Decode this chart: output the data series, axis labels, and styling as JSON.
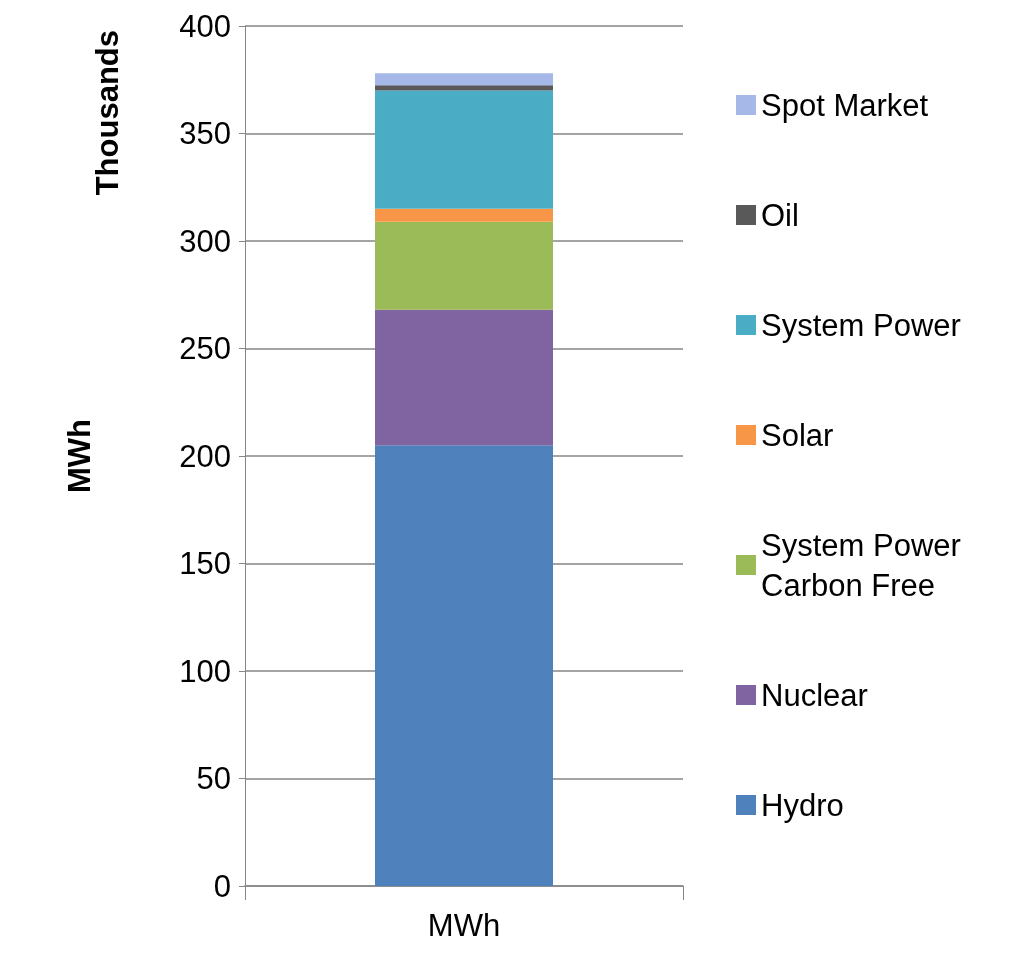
{
  "chart_data": {
    "type": "bar",
    "stacked": true,
    "ylabel": "MWh",
    "annotations": [
      "Thousands"
    ],
    "categories": [
      "MWh"
    ],
    "series": [
      {
        "name": "Hydro",
        "color": "#4f81bd",
        "values": [
          205
        ]
      },
      {
        "name": "Nuclear",
        "color": "#8064a2",
        "values": [
          63
        ]
      },
      {
        "name": "System Power Carbon Free",
        "color": "#9bbb59",
        "values": [
          41
        ]
      },
      {
        "name": "Solar",
        "color": "#f79646",
        "values": [
          6
        ]
      },
      {
        "name": "System Power",
        "color": "#4bacc6",
        "values": [
          55
        ]
      },
      {
        "name": "Oil",
        "color": "#595959",
        "values": [
          2.5
        ]
      },
      {
        "name": "Spot Market",
        "color": "#a5b8e8",
        "values": [
          5.5
        ]
      }
    ],
    "ylim": [
      0,
      400
    ],
    "yticks": [
      0,
      50,
      100,
      150,
      200,
      250,
      300,
      350,
      400
    ],
    "grid": "y",
    "legend": "right"
  }
}
